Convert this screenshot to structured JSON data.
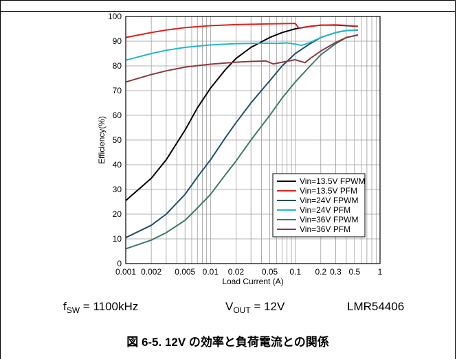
{
  "chart_data": {
    "type": "line",
    "xlabel": "Load Current (A)",
    "ylabel": "Efficiency(%)",
    "xscale": "log",
    "xlim": [
      0.001,
      1
    ],
    "ylim": [
      0,
      100
    ],
    "yticks": [
      "0",
      "10",
      "20",
      "30",
      "40",
      "50",
      "60",
      "70",
      "80",
      "90",
      "100"
    ],
    "xticks": [
      {
        "v": 0.001,
        "label": "0.001"
      },
      {
        "v": 0.002,
        "label": "0.002"
      },
      {
        "v": 0.005,
        "label": "0.005"
      },
      {
        "v": 0.01,
        "label": "0.01"
      },
      {
        "v": 0.02,
        "label": "0.02"
      },
      {
        "v": 0.05,
        "label": "0.05"
      },
      {
        "v": 0.1,
        "label": "0.1"
      },
      {
        "v": 0.2,
        "label": "0.2"
      },
      {
        "v": 0.3,
        "label": "0.3"
      },
      {
        "v": 0.5,
        "label": "0.5"
      },
      {
        "v": 1,
        "label": "1"
      }
    ],
    "grid": true,
    "legend_position": "bottom-right",
    "series": [
      {
        "name": "Vin=13.5V FPWM",
        "color": "#000000",
        "points": [
          [
            0.001,
            25.5
          ],
          [
            0.002,
            34.5
          ],
          [
            0.003,
            42
          ],
          [
            0.005,
            54
          ],
          [
            0.007,
            63
          ],
          [
            0.01,
            71
          ],
          [
            0.015,
            78.5
          ],
          [
            0.02,
            83
          ],
          [
            0.03,
            87.5
          ],
          [
            0.05,
            91.5
          ],
          [
            0.07,
            93.5
          ],
          [
            0.1,
            95
          ],
          [
            0.15,
            96
          ],
          [
            0.2,
            96.5
          ],
          [
            0.3,
            96.5
          ],
          [
            0.4,
            96.3
          ],
          [
            0.55,
            96
          ]
        ]
      },
      {
        "name": "Vin=13.5V PFM",
        "color": "#e02020",
        "points": [
          [
            0.001,
            91.5
          ],
          [
            0.002,
            93.5
          ],
          [
            0.003,
            94.5
          ],
          [
            0.005,
            95.5
          ],
          [
            0.01,
            96.3
          ],
          [
            0.02,
            96.7
          ],
          [
            0.05,
            97
          ],
          [
            0.1,
            97.2
          ],
          [
            0.11,
            95.3
          ],
          [
            0.15,
            96
          ],
          [
            0.2,
            96.5
          ],
          [
            0.3,
            96.6
          ],
          [
            0.4,
            96.4
          ],
          [
            0.55,
            96
          ]
        ]
      },
      {
        "name": "Vin=24V FPWM",
        "color": "#1f4e6e",
        "points": [
          [
            0.001,
            10.5
          ],
          [
            0.002,
            15.5
          ],
          [
            0.003,
            20
          ],
          [
            0.005,
            28
          ],
          [
            0.007,
            35
          ],
          [
            0.01,
            42
          ],
          [
            0.015,
            51
          ],
          [
            0.02,
            57
          ],
          [
            0.03,
            65
          ],
          [
            0.05,
            74
          ],
          [
            0.07,
            80
          ],
          [
            0.1,
            85
          ],
          [
            0.15,
            89
          ],
          [
            0.2,
            91.5
          ],
          [
            0.3,
            93.5
          ],
          [
            0.4,
            94.3
          ],
          [
            0.55,
            94.5
          ]
        ]
      },
      {
        "name": "Vin=24V PFM",
        "color": "#20b8c8",
        "points": [
          [
            0.001,
            82.3
          ],
          [
            0.002,
            85
          ],
          [
            0.003,
            86.3
          ],
          [
            0.005,
            87.5
          ],
          [
            0.01,
            88.5
          ],
          [
            0.02,
            89
          ],
          [
            0.04,
            89.2
          ],
          [
            0.06,
            89.1
          ],
          [
            0.08,
            89.3
          ],
          [
            0.1,
            88.8
          ],
          [
            0.12,
            88.3
          ],
          [
            0.15,
            89.5
          ],
          [
            0.2,
            91.5
          ],
          [
            0.3,
            93.5
          ],
          [
            0.4,
            94.3
          ],
          [
            0.55,
            94.5
          ]
        ]
      },
      {
        "name": "Vin=36V FPWM",
        "color": "#3c7a6a",
        "points": [
          [
            0.001,
            6
          ],
          [
            0.002,
            9.5
          ],
          [
            0.003,
            12.5
          ],
          [
            0.005,
            17.5
          ],
          [
            0.007,
            22.5
          ],
          [
            0.01,
            28
          ],
          [
            0.015,
            36
          ],
          [
            0.02,
            41.5
          ],
          [
            0.03,
            50
          ],
          [
            0.05,
            60
          ],
          [
            0.07,
            67
          ],
          [
            0.1,
            73.5
          ],
          [
            0.15,
            80
          ],
          [
            0.2,
            84.5
          ],
          [
            0.3,
            89
          ],
          [
            0.4,
            91.5
          ],
          [
            0.55,
            92.5
          ]
        ]
      },
      {
        "name": "Vin=36V PFM",
        "color": "#8b3a3f",
        "points": [
          [
            0.001,
            73.5
          ],
          [
            0.002,
            76.5
          ],
          [
            0.003,
            78
          ],
          [
            0.005,
            79.5
          ],
          [
            0.01,
            80.7
          ],
          [
            0.02,
            81.5
          ],
          [
            0.03,
            81.8
          ],
          [
            0.045,
            82
          ],
          [
            0.055,
            80.8
          ],
          [
            0.07,
            81.5
          ],
          [
            0.1,
            82.5
          ],
          [
            0.13,
            81.3
          ],
          [
            0.15,
            83
          ],
          [
            0.2,
            86
          ],
          [
            0.3,
            89.5
          ],
          [
            0.4,
            91.5
          ],
          [
            0.55,
            92.5
          ]
        ]
      }
    ]
  },
  "conditions": {
    "fsw_label": "f",
    "fsw_sub": "SW",
    "fsw_value": " = 1100kHz",
    "vout_label": "V",
    "vout_sub": "OUT",
    "vout_value": " = 12V",
    "part": "LMR54406"
  },
  "caption": "図 6-5. 12V の効率と負荷電流との関係"
}
